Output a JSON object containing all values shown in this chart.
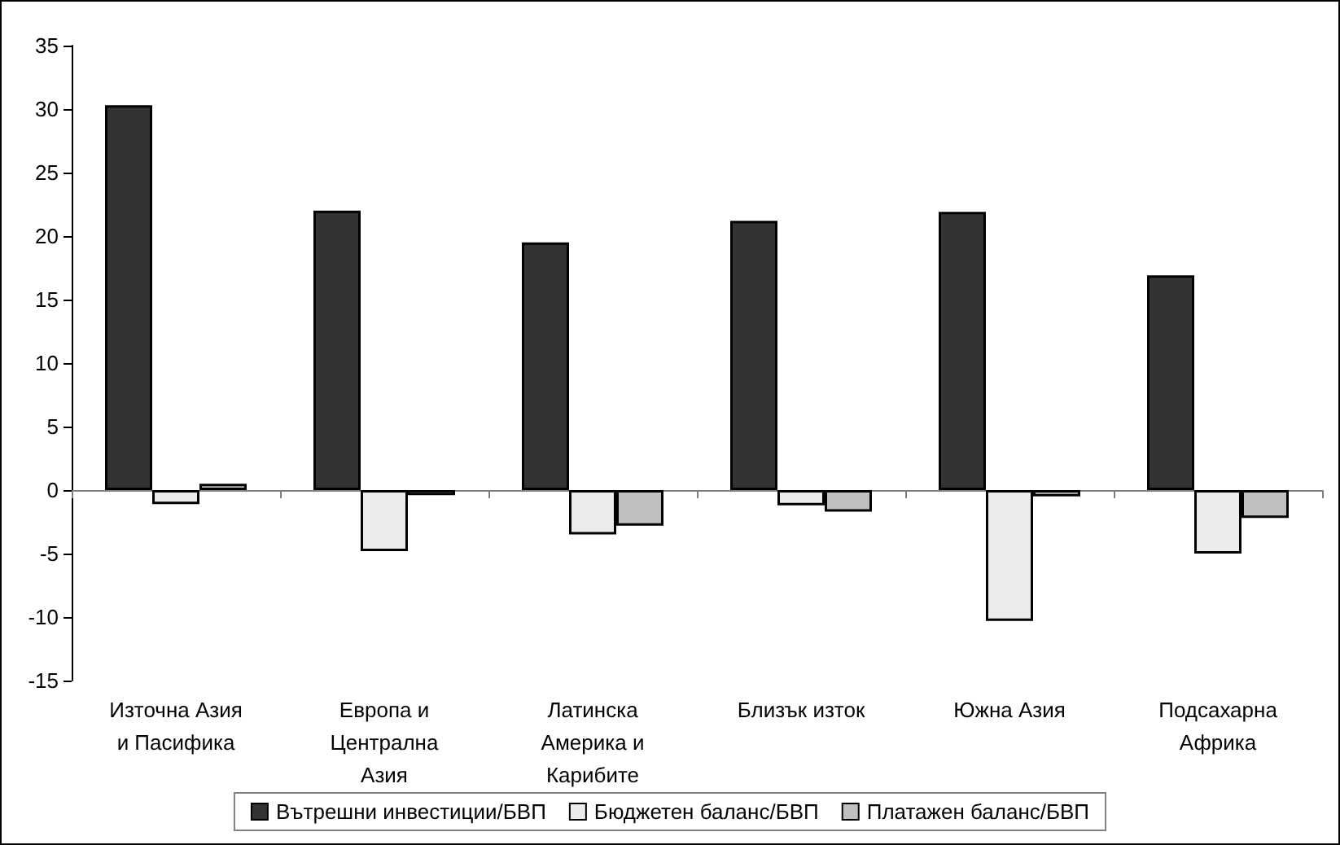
{
  "chart_data": {
    "type": "bar",
    "categories": [
      "Източна Азия и Пасифика",
      "Европа и Централна Азия",
      "Латинска Америка и Карибите",
      "Близък изток",
      "Южна Азия",
      "Подсахарна Африка"
    ],
    "series": [
      {
        "name": "Вътрешни инвестиции/БВП",
        "color": "#333333",
        "values": [
          30.3,
          22.0,
          19.5,
          21.2,
          21.9,
          16.9
        ]
      },
      {
        "name": "Бюджетен баланс/БВП",
        "color": "#ececec",
        "values": [
          -1.1,
          -4.8,
          -3.5,
          -1.2,
          -10.3,
          -5.0
        ]
      },
      {
        "name": "Платажен баланс/БВП",
        "color": "#c0c0c0",
        "values": [
          0.5,
          -0.4,
          -2.8,
          -1.7,
          -0.5,
          -2.2
        ]
      }
    ],
    "ylim": [
      -15,
      35
    ],
    "yticks": [
      -15,
      -10,
      -5,
      0,
      5,
      10,
      15,
      20,
      25,
      30,
      35
    ],
    "legend": "bottom"
  }
}
